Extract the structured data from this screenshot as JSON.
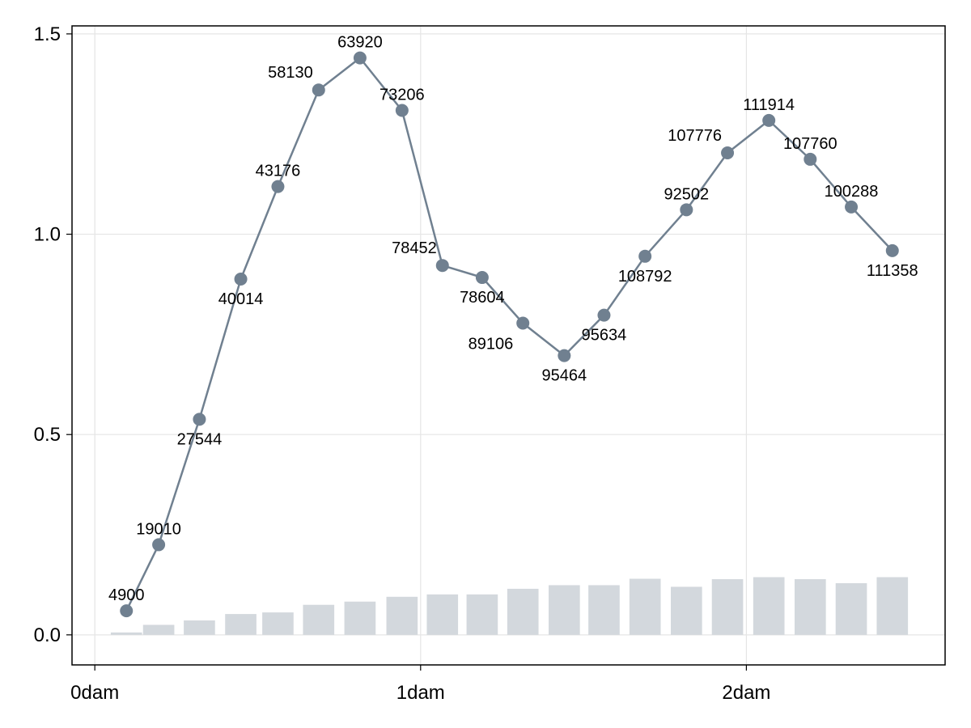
{
  "chart_data": {
    "type": "line",
    "title": "",
    "xlabel": "",
    "ylabel": "",
    "xlim": [
      -0.07,
      2.61
    ],
    "ylim": [
      -0.075,
      1.52
    ],
    "grid": true,
    "legend": "none",
    "x_ticks": [
      {
        "value": 0,
        "label": "0dam"
      },
      {
        "value": 1,
        "label": "1dam"
      },
      {
        "value": 2,
        "label": "2dam"
      }
    ],
    "y_ticks": [
      {
        "value": 0.0,
        "label": "0.0"
      },
      {
        "value": 0.5,
        "label": "0.5"
      },
      {
        "value": 1.0,
        "label": "1.0"
      },
      {
        "value": 1.5,
        "label": "1.5"
      }
    ],
    "line_series": {
      "color": "#708090",
      "points": [
        {
          "x": 0.097,
          "y": 0.06,
          "label": "4900",
          "label_pos": "above"
        },
        {
          "x": 0.196,
          "y": 0.225,
          "label": "19010",
          "label_pos": "above"
        },
        {
          "x": 0.321,
          "y": 0.538,
          "label": "27544",
          "label_pos": "below"
        },
        {
          "x": 0.448,
          "y": 0.888,
          "label": "40014",
          "label_pos": "below"
        },
        {
          "x": 0.562,
          "y": 1.119,
          "label": "43176",
          "label_pos": "above"
        },
        {
          "x": 0.687,
          "y": 1.36,
          "label": "58130",
          "label_pos": "above-left"
        },
        {
          "x": 0.814,
          "y": 1.44,
          "label": "63920",
          "label_pos": "above"
        },
        {
          "x": 0.943,
          "y": 1.309,
          "label": "73206",
          "label_pos": "above"
        },
        {
          "x": 1.067,
          "y": 0.922,
          "label": "78452",
          "label_pos": "above-left"
        },
        {
          "x": 1.189,
          "y": 0.892,
          "label": "78604",
          "label_pos": "below"
        },
        {
          "x": 1.314,
          "y": 0.778,
          "label": "89106",
          "label_pos": "below-left"
        },
        {
          "x": 1.441,
          "y": 0.697,
          "label": "95464",
          "label_pos": "below"
        },
        {
          "x": 1.563,
          "y": 0.798,
          "label": "95634",
          "label_pos": "below"
        },
        {
          "x": 1.689,
          "y": 0.945,
          "label": "108792",
          "label_pos": "below"
        },
        {
          "x": 1.816,
          "y": 1.061,
          "label": "92502",
          "label_pos": "above"
        },
        {
          "x": 1.942,
          "y": 1.203,
          "label": "107776",
          "label_pos": "above-left"
        },
        {
          "x": 2.069,
          "y": 1.284,
          "label": "111914",
          "label_pos": "above"
        },
        {
          "x": 2.196,
          "y": 1.187,
          "label": "107760",
          "label_pos": "above"
        },
        {
          "x": 2.322,
          "y": 1.068,
          "label": "100288",
          "label_pos": "above"
        },
        {
          "x": 2.448,
          "y": 0.959,
          "label": "111358",
          "label_pos": "below"
        }
      ]
    },
    "bar_series": {
      "color": "#d3d8dd",
      "bars": [
        {
          "x": 0.097,
          "y": 0.006
        },
        {
          "x": 0.196,
          "y": 0.025
        },
        {
          "x": 0.321,
          "y": 0.036
        },
        {
          "x": 0.448,
          "y": 0.052
        },
        {
          "x": 0.562,
          "y": 0.056
        },
        {
          "x": 0.687,
          "y": 0.075
        },
        {
          "x": 0.814,
          "y": 0.083
        },
        {
          "x": 0.943,
          "y": 0.095
        },
        {
          "x": 1.067,
          "y": 0.101
        },
        {
          "x": 1.189,
          "y": 0.101
        },
        {
          "x": 1.314,
          "y": 0.115
        },
        {
          "x": 1.441,
          "y": 0.124
        },
        {
          "x": 1.563,
          "y": 0.124
        },
        {
          "x": 1.689,
          "y": 0.14
        },
        {
          "x": 1.816,
          "y": 0.12
        },
        {
          "x": 1.942,
          "y": 0.139
        },
        {
          "x": 2.069,
          "y": 0.144
        },
        {
          "x": 2.196,
          "y": 0.139
        },
        {
          "x": 2.322,
          "y": 0.129
        },
        {
          "x": 2.448,
          "y": 0.144
        }
      ]
    }
  }
}
